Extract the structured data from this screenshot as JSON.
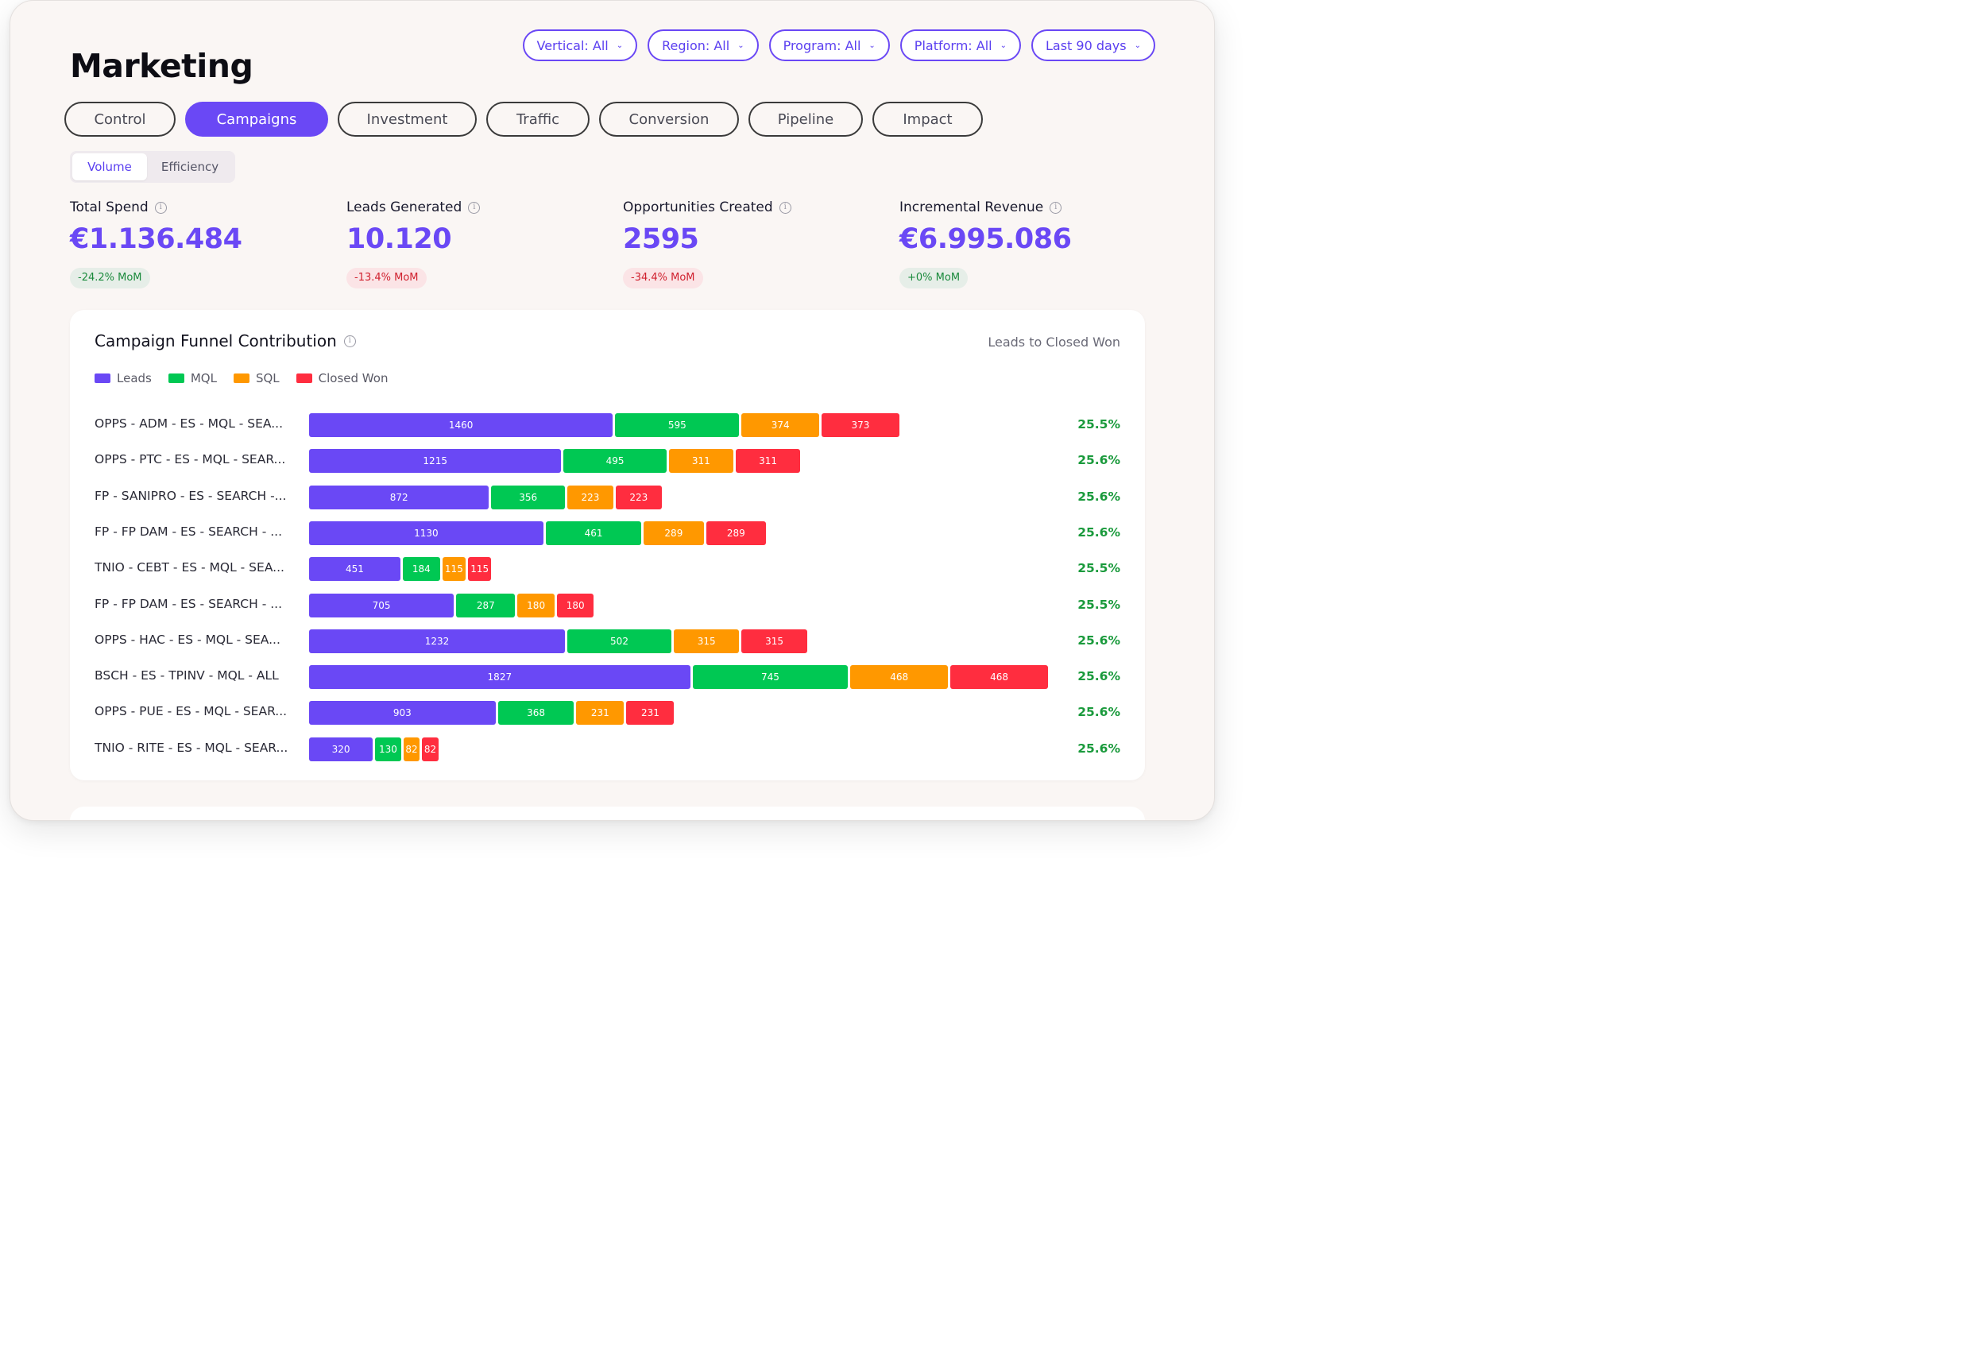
{
  "header": {
    "title": "Marketing"
  },
  "filters": [
    {
      "label": "Vertical: All"
    },
    {
      "label": "Region: All"
    },
    {
      "label": "Program: All"
    },
    {
      "label": "Platform: All"
    },
    {
      "label": "Last 90 days"
    }
  ],
  "tabs": [
    {
      "label": "Control",
      "active": false
    },
    {
      "label": "Campaigns",
      "active": true
    },
    {
      "label": "Investment",
      "active": false
    },
    {
      "label": "Traffic",
      "active": false
    },
    {
      "label": "Conversion",
      "active": false
    },
    {
      "label": "Pipeline",
      "active": false
    },
    {
      "label": "Impact",
      "active": false
    }
  ],
  "view_toggle": {
    "volume": "Volume",
    "efficiency": "Efficiency",
    "selected": "Volume"
  },
  "kpis": [
    {
      "label": "Total Spend",
      "value": "€1.136.484",
      "change": "-24.2% MoM",
      "trend": "positive"
    },
    {
      "label": "Leads Generated",
      "value": "10.120",
      "change": "-13.4% MoM",
      "trend": "negative"
    },
    {
      "label": "Opportunities Created",
      "value": "2595",
      "change": "-34.4% MoM",
      "trend": "negative"
    },
    {
      "label": "Incremental Revenue",
      "value": "€6.995.086",
      "change": "+0% MoM",
      "trend": "positive"
    }
  ],
  "colors": {
    "accent": "#6a48f5",
    "leads": "#6a48f5",
    "mql": "#00c853",
    "sql": "#ff9800",
    "closed_won": "#ff2d3f",
    "positive": "#1a8a3c",
    "negative": "#d0212f"
  },
  "funnel_card": {
    "title": "Campaign Funnel Contribution",
    "subtitle": "Leads to Closed Won",
    "legend": [
      "Leads",
      "MQL",
      "SQL",
      "Closed Won"
    ]
  },
  "chart_data": {
    "type": "bar",
    "title": "Campaign Funnel Contribution",
    "orientation": "horizontal",
    "stacked": true,
    "categories": [
      "OPPS - ADM - ES - MQL - SEA...",
      "OPPS - PTC - ES - MQL - SEAR...",
      "FP - SANIPRO - ES - SEARCH -...",
      "FP - FP DAM - ES - SEARCH - ...",
      "TNIO - CEBT - ES - MQL - SEA...",
      "FP - FP DAM - ES - SEARCH - ...",
      "OPPS - HAC - ES - MQL - SEA...",
      "BSCH - ES - TPINV - MQL - ALL",
      "OPPS - PUE - ES - MQL - SEAR...",
      "TNIO - RITE - ES - MQL - SEAR..."
    ],
    "series": [
      {
        "name": "Leads",
        "values": [
          1460,
          1215,
          872,
          1130,
          451,
          705,
          1232,
          1827,
          903,
          320
        ]
      },
      {
        "name": "MQL",
        "values": [
          595,
          495,
          356,
          461,
          184,
          287,
          502,
          745,
          368,
          130
        ]
      },
      {
        "name": "SQL",
        "values": [
          374,
          311,
          223,
          289,
          115,
          180,
          315,
          468,
          231,
          82
        ]
      },
      {
        "name": "Closed Won",
        "values": [
          373,
          311,
          223,
          289,
          115,
          180,
          315,
          468,
          231,
          82
        ]
      }
    ],
    "conversion_rates": [
      "25.5%",
      "25.6%",
      "25.6%",
      "25.6%",
      "25.5%",
      "25.5%",
      "25.6%",
      "25.6%",
      "25.6%",
      "25.6%"
    ],
    "legend_position": "top-left",
    "grid": false
  }
}
